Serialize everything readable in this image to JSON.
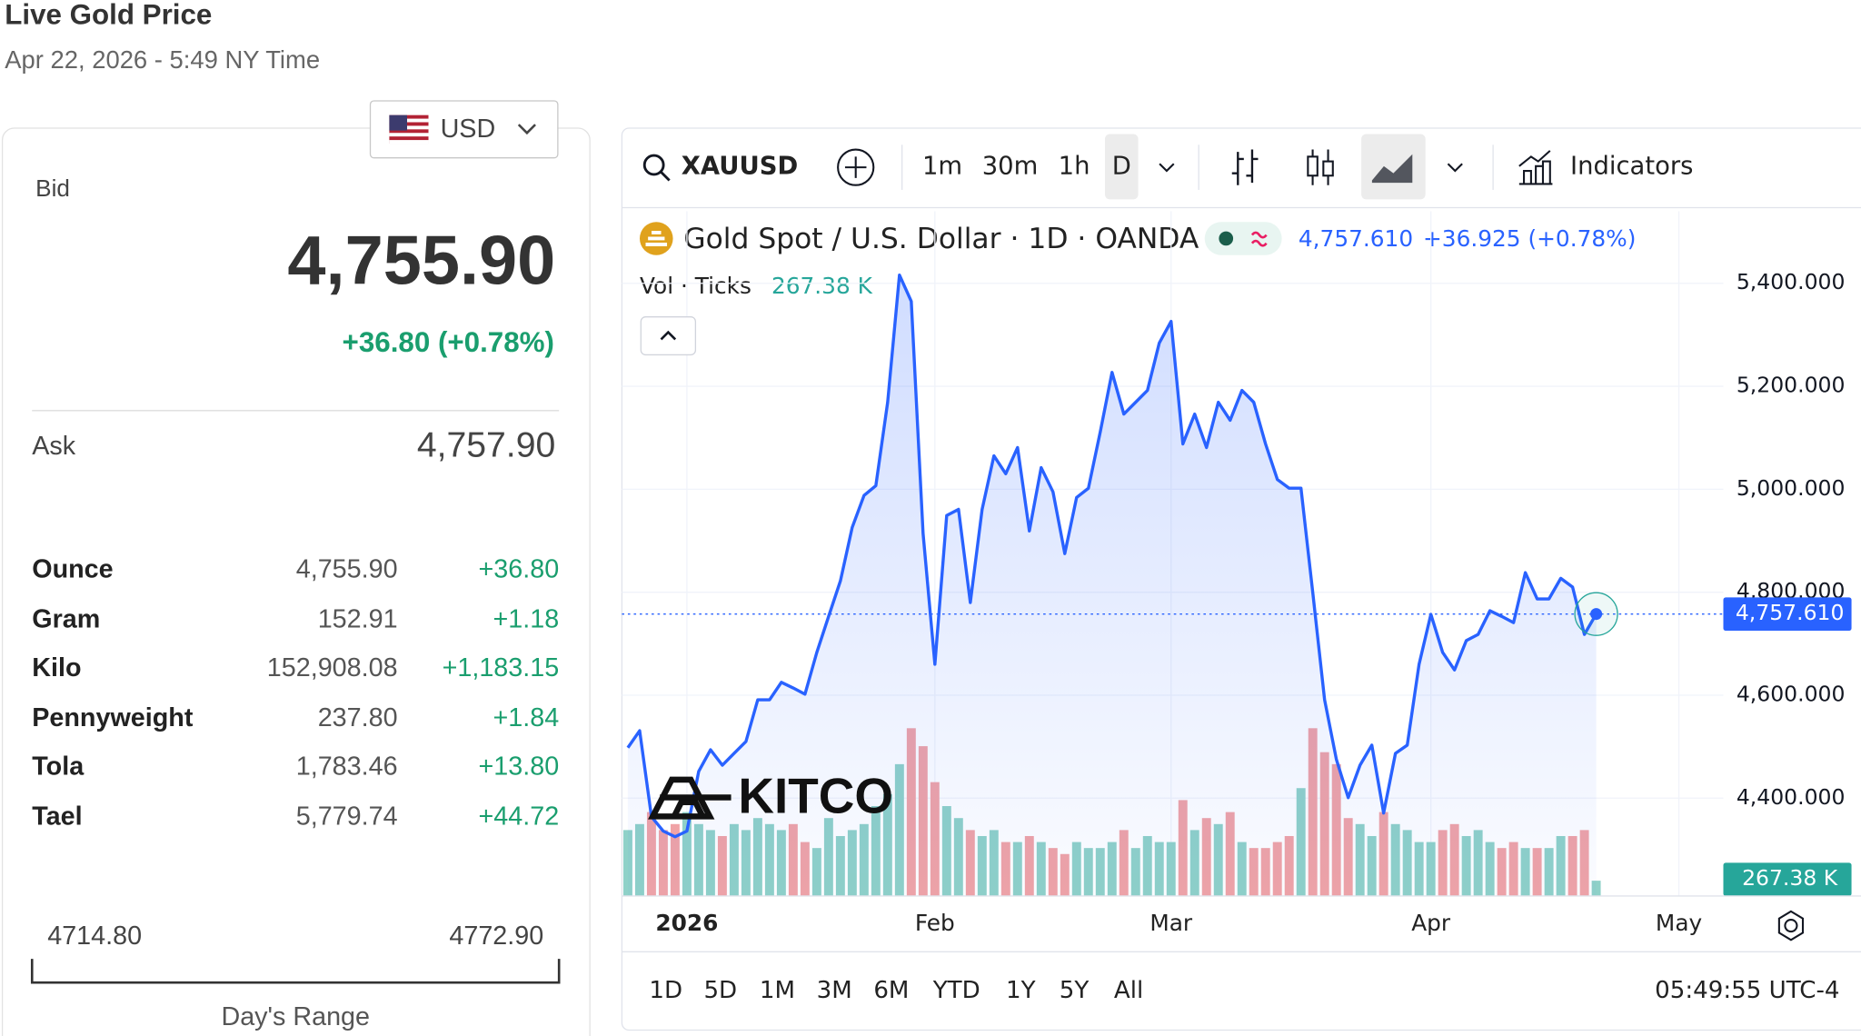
{
  "header": {
    "title": "Live Gold Price",
    "timestamp": "Apr 22, 2026 - 5:49 NY Time"
  },
  "currency": "USD",
  "bid": {
    "label": "Bid",
    "value": "4,755.90",
    "change": "+36.80 (+0.78%)"
  },
  "ask": {
    "label": "Ask",
    "value": "4,757.90"
  },
  "units": [
    [
      "Ounce",
      "4,755.90",
      "+36.80"
    ],
    [
      "Gram",
      "152.91",
      "+1.18"
    ],
    [
      "Kilo",
      "152,908.08",
      "+1,183.15"
    ],
    [
      "Pennyweight",
      "237.80",
      "+1.84"
    ],
    [
      "Tola",
      "1,783.46",
      "+13.80"
    ],
    [
      "Tael",
      "5,779.74",
      "+44.72"
    ]
  ],
  "day_range": {
    "low": "4714.80",
    "high": "4772.90",
    "label": "Day's Range"
  },
  "toolbar": {
    "symbol": "XAUUSD",
    "intervals": [
      "1m",
      "30m",
      "1h",
      "D"
    ],
    "indicators": "Indicators"
  },
  "legend": {
    "title": "Gold Spot / U.S. Dollar · 1D · OANDA",
    "price": "4,757.610",
    "change": "+36.925 (+0.78%)",
    "volume_label": "Vol · Ticks",
    "volume": "267.38 K"
  },
  "logo": "KITCO",
  "ranges": [
    "1D",
    "5D",
    "1M",
    "3M",
    "6M",
    "YTD",
    "1Y",
    "5Y",
    "All"
  ],
  "clock": "05:49:55 UTC-4",
  "chart_data": {
    "type": "line",
    "categories": [
      null,
      null,
      null,
      null,
      null,
      "2026",
      null,
      null,
      null,
      null,
      null,
      null,
      null,
      null,
      null,
      null,
      null,
      null,
      null,
      null,
      null,
      null,
      null,
      null,
      null,
      null,
      "Feb",
      null,
      null,
      null,
      null,
      null,
      null,
      null,
      null,
      null,
      null,
      null,
      null,
      null,
      null,
      null,
      null,
      null,
      null,
      null,
      "Mar",
      null,
      null,
      null,
      null,
      null,
      null,
      null,
      null,
      null,
      null,
      null,
      null,
      null,
      null,
      null,
      null,
      null,
      null,
      null,
      null,
      null,
      "Apr",
      null,
      null,
      null,
      null,
      null,
      null,
      null,
      null,
      null,
      null,
      null,
      null,
      null,
      null,
      null,
      null,
      null,
      null,
      null,
      null,
      "May"
    ],
    "series": [
      {
        "name": "XAUUSD",
        "color": "#2962ff",
        "values": [
          4498,
          4531,
          4364,
          4336,
          4325,
          4336,
          4452,
          4494,
          4464,
          4487,
          4510,
          4591,
          4591,
          4625,
          4614,
          4602,
          4683,
          4753,
          4822,
          4926,
          4988,
          5007,
          5169,
          5416,
          5365,
          4914,
          4660,
          4949,
          4961,
          4780,
          4961,
          5065,
          5030,
          5081,
          4919,
          5042,
          4995,
          4875,
          4984,
          5002,
          5111,
          5227,
          5146,
          5169,
          5192,
          5284,
          5326,
          5088,
          5146,
          5081,
          5169,
          5134,
          5192,
          5169,
          5088,
          5019,
          5002,
          5002,
          4799,
          4591,
          4475,
          4401,
          4464,
          4503,
          4371,
          4487,
          4503,
          4660,
          4757,
          4683,
          4649,
          4706,
          4718,
          4764,
          4753,
          4741,
          4838,
          4787,
          4787,
          4827,
          4810,
          4718,
          4757.61,
          null,
          null,
          null,
          null,
          null,
          null,
          null
        ]
      },
      {
        "name": "Vol",
        "type": "bar",
        "axis": "y2",
        "up_color": "#8fd1c8",
        "down_color": "#f0a3a6",
        "values": [
          1155,
          1260,
          1470,
          1155,
          1260,
          1470,
          1260,
          1155,
          1050,
          1260,
          1155,
          1365,
          1260,
          1155,
          1260,
          945,
          840,
          1365,
          1050,
          1155,
          1260,
          1575,
          1785,
          2310,
          2940,
          2625,
          1995,
          1575,
          1365,
          1155,
          1050,
          1155,
          945,
          945,
          1050,
          945,
          840,
          735,
          945,
          840,
          840,
          945,
          1155,
          840,
          1050,
          945,
          945,
          1680,
          1155,
          1365,
          1260,
          1470,
          945,
          840,
          840,
          945,
          1050,
          1890,
          2940,
          2520,
          2310,
          1365,
          1260,
          1050,
          1470,
          1260,
          1155,
          945,
          945,
          1155,
          1260,
          1050,
          1155,
          945,
          840,
          945,
          840,
          840,
          840,
          1050,
          1050,
          1155,
          267.38,
          null,
          null,
          null,
          null,
          null,
          null,
          null
        ]
      }
    ],
    "ylim": [
      4210,
      5540
    ],
    "yticks": [
      {
        "value": 4400,
        "label": "4,400.000"
      },
      {
        "value": 4600,
        "label": "4,600.000"
      },
      {
        "value": 4800,
        "label": "4,800.000"
      },
      {
        "value": 5000,
        "label": "5,000.000"
      },
      {
        "value": 5200,
        "label": "5,200.000"
      },
      {
        "value": 5400,
        "label": "5,400.000"
      }
    ],
    "y2lim": [
      0,
      12000
    ],
    "grid": true
  }
}
